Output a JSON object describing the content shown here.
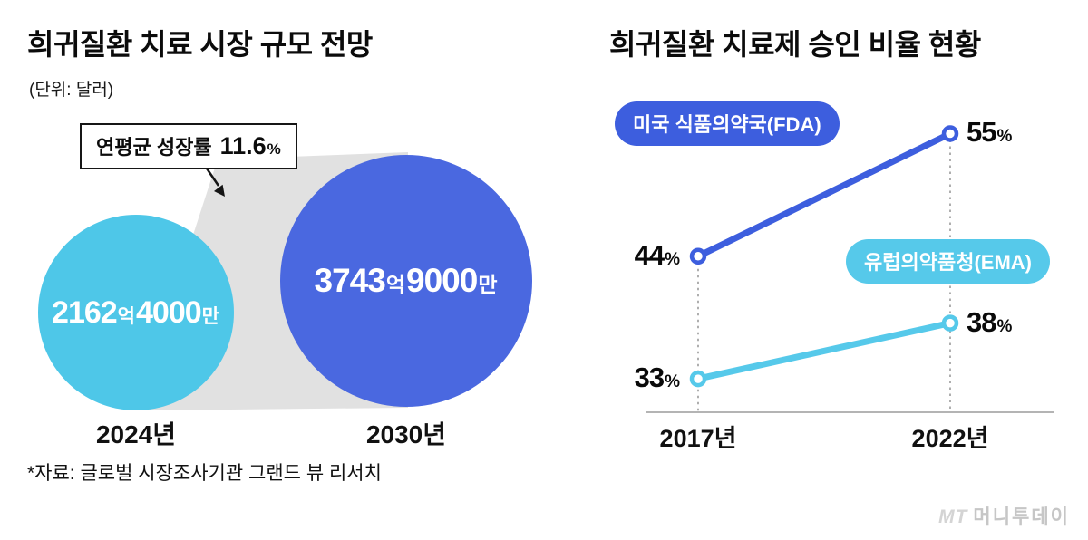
{
  "left_chart": {
    "title": "희귀질환 치료 시장 규모 전망",
    "unit_label": "(단위: 달러)",
    "growth": {
      "prefix": "연평균 성장률",
      "value": "11.6",
      "suffix": "%"
    },
    "bubbles": [
      {
        "year": "2024년",
        "num1": "2162",
        "suf1": "억",
        "num2": "4000",
        "suf2": "만",
        "color": "#4ec7e8"
      },
      {
        "year": "2030년",
        "num1": "3743",
        "suf1": "억",
        "num2": "9000",
        "suf2": "만",
        "color": "#4a68e0"
      }
    ],
    "source": "*자료: 글로벌 시장조사기관 그랜드 뷰 리서치"
  },
  "right_chart": {
    "title": "희귀질환 치료제 승인 비율 현황",
    "x_labels": [
      "2017년",
      "2022년"
    ],
    "percent_sign": "%",
    "series": [
      {
        "name": "미국 식품의약국(FDA)",
        "color": "#3d5ede",
        "values": [
          44,
          55
        ]
      },
      {
        "name": "유럽의약품청(EMA)",
        "color": "#56c9ea",
        "values": [
          33,
          38
        ]
      }
    ]
  },
  "watermark": {
    "logo": "MT",
    "name": "머니투데이"
  },
  "chart_data": [
    {
      "type": "bubble",
      "title": "희귀질환 치료 시장 규모 전망",
      "unit": "달러",
      "categories": [
        "2024년",
        "2030년"
      ],
      "values": [
        216240000000,
        374390000000
      ],
      "value_labels": [
        "2162억4000만",
        "3743억9000만"
      ],
      "annotation": "연평균 성장률 11.6%",
      "colors": [
        "#4ec7e8",
        "#4a68e0"
      ],
      "source": "*자료: 글로벌 시장조사기관 그랜드 뷰 리서치"
    },
    {
      "type": "line",
      "title": "희귀질환 치료제 승인 비율 현황",
      "categories": [
        "2017년",
        "2022년"
      ],
      "series": [
        {
          "name": "미국 식품의약국(FDA)",
          "values": [
            44,
            55
          ],
          "color": "#3d5ede"
        },
        {
          "name": "유럽의약품청(EMA)",
          "values": [
            33,
            38
          ],
          "color": "#56c9ea"
        }
      ],
      "unit": "%",
      "ylim": [
        30,
        60
      ],
      "legend_position": "inline-pills",
      "grid": "dotted-vertical-guides"
    }
  ]
}
